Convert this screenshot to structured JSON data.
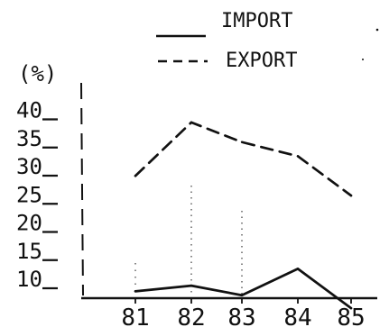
{
  "chart_data": {
    "type": "line",
    "title": "",
    "xlabel": "",
    "ylabel": "(%)",
    "categories": [
      "81",
      "82",
      "83",
      "84",
      "85"
    ],
    "yticks": [
      "10",
      "15",
      "20",
      "25",
      "30",
      "35",
      "40"
    ],
    "ylim": [
      8,
      43
    ],
    "legend_position": "top-right",
    "grid": false,
    "series": [
      {
        "name": "IMPORT",
        "style": "solid",
        "values": [
          8.5,
          9.5,
          7.8,
          12.5,
          5.5
        ]
      },
      {
        "name": "EXPORT",
        "style": "dashed",
        "values": [
          29,
          38.5,
          35,
          32.5,
          25.5
        ]
      }
    ]
  }
}
